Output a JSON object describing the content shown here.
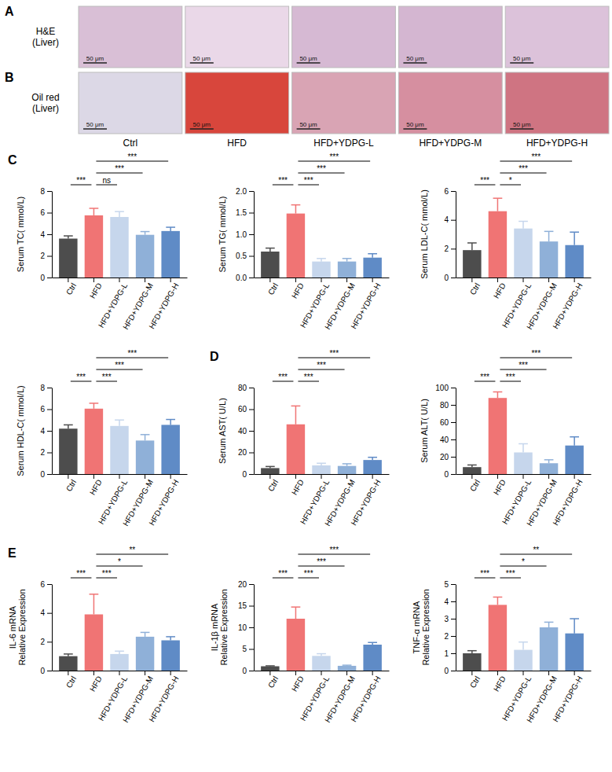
{
  "figure": {
    "panel_letters": [
      "A",
      "B",
      "C",
      "D",
      "E"
    ],
    "image_rows": [
      {
        "label": [
          "H&E",
          "(Liver)"
        ]
      },
      {
        "label": [
          "Oil red",
          "(Liver)"
        ]
      }
    ],
    "groups": [
      "Ctrl",
      "HFD",
      "HFD+YDPG-L",
      "HFD+YDPG-M",
      "HFD+YDPG-H"
    ],
    "scale_bar": "50 μm"
  },
  "chart_data": [
    {
      "type": "bar",
      "ylabel": "Serum TC( mmol/L)",
      "categories": [
        "Ctrl",
        "HFD",
        "HFD+YDPG-L",
        "HFD+YDPG-M",
        "HFD+YDPG-H"
      ],
      "values": [
        3.6,
        5.75,
        5.6,
        3.95,
        4.3
      ],
      "errors": [
        0.25,
        0.65,
        0.5,
        0.3,
        0.35
      ],
      "colors": [
        "#4d4d4d",
        "#f07474",
        "#c6d6ec",
        "#8fb0d8",
        "#5f8bc6"
      ],
      "ylim": [
        0,
        8
      ],
      "yticks": [
        0,
        2,
        4,
        6,
        8
      ],
      "annotations": [
        {
          "from": 0,
          "to": 1,
          "label": "***"
        },
        {
          "from": 1,
          "to": 2,
          "label": "ns"
        },
        {
          "from": 1,
          "to": 3,
          "label": "***"
        },
        {
          "from": 1,
          "to": 4,
          "label": "***"
        }
      ]
    },
    {
      "type": "bar",
      "ylabel": "Serum TG( mmol/L)",
      "categories": [
        "Ctrl",
        "HFD",
        "HFD+YDPG-L",
        "HFD+YDPG-M",
        "HFD+YDPG-H"
      ],
      "values": [
        0.6,
        1.48,
        0.37,
        0.37,
        0.46
      ],
      "errors": [
        0.08,
        0.2,
        0.07,
        0.07,
        0.09
      ],
      "colors": [
        "#4d4d4d",
        "#f07474",
        "#c6d6ec",
        "#8fb0d8",
        "#5f8bc6"
      ],
      "ylim": [
        0,
        2
      ],
      "yticks": [
        {
          "value": 0,
          "label": "0.0"
        },
        {
          "value": 0.5,
          "label": "0.5"
        },
        {
          "value": 1,
          "label": "1.0"
        },
        {
          "value": 1.5,
          "label": "1.5"
        },
        {
          "value": 2,
          "label": "2.0"
        }
      ],
      "annotations": [
        {
          "from": 0,
          "to": 1,
          "label": "***"
        },
        {
          "from": 1,
          "to": 2,
          "label": "***"
        },
        {
          "from": 1,
          "to": 3,
          "label": "***"
        },
        {
          "from": 1,
          "to": 4,
          "label": "***"
        }
      ]
    },
    {
      "type": "bar",
      "ylabel": "Serum LDL-C( mmol/L)",
      "categories": [
        "Ctrl",
        "HFD",
        "HFD+YDPG-L",
        "HFD+YDPG-M",
        "HFD+YDPG-H"
      ],
      "values": [
        1.9,
        4.6,
        3.4,
        2.5,
        2.25
      ],
      "errors": [
        0.5,
        0.9,
        0.5,
        0.7,
        0.9
      ],
      "colors": [
        "#4d4d4d",
        "#f07474",
        "#c6d6ec",
        "#8fb0d8",
        "#5f8bc6"
      ],
      "ylim": [
        0,
        6
      ],
      "yticks": [
        0,
        2,
        4,
        6
      ],
      "annotations": [
        {
          "from": 0,
          "to": 1,
          "label": "***"
        },
        {
          "from": 1,
          "to": 2,
          "label": "*"
        },
        {
          "from": 1,
          "to": 3,
          "label": "***"
        },
        {
          "from": 1,
          "to": 4,
          "label": "***"
        }
      ]
    },
    {
      "type": "bar",
      "ylabel": "Serum HDL-C( mmol/L)",
      "categories": [
        "Ctrl",
        "HFD",
        "HFD+YDPG-L",
        "HFD+YDPG-M",
        "HFD+YDPG-H"
      ],
      "values": [
        4.2,
        6.05,
        4.45,
        3.1,
        4.55
      ],
      "errors": [
        0.35,
        0.5,
        0.55,
        0.55,
        0.5
      ],
      "colors": [
        "#4d4d4d",
        "#f07474",
        "#c6d6ec",
        "#8fb0d8",
        "#5f8bc6"
      ],
      "ylim": [
        0,
        8
      ],
      "yticks": [
        0,
        2,
        4,
        6,
        8
      ],
      "annotations": [
        {
          "from": 0,
          "to": 1,
          "label": "***"
        },
        {
          "from": 1,
          "to": 2,
          "label": "***"
        },
        {
          "from": 1,
          "to": 3,
          "label": "***"
        },
        {
          "from": 1,
          "to": 4,
          "label": "***"
        }
      ]
    },
    {
      "type": "bar",
      "ylabel": "Serum AST( U/L)",
      "categories": [
        "Ctrl",
        "HFD",
        "HFD+YDPG-L",
        "HFD+YDPG-M",
        "HFD+YDPG-H"
      ],
      "values": [
        5.5,
        46,
        8,
        7.5,
        13
      ],
      "errors": [
        1.5,
        17,
        2,
        2,
        2.5
      ],
      "colors": [
        "#4d4d4d",
        "#f07474",
        "#c6d6ec",
        "#8fb0d8",
        "#5f8bc6"
      ],
      "ylim": [
        0,
        80
      ],
      "yticks": [
        0,
        20,
        40,
        60,
        80
      ],
      "annotations": [
        {
          "from": 0,
          "to": 1,
          "label": "***"
        },
        {
          "from": 1,
          "to": 2,
          "label": "***"
        },
        {
          "from": 1,
          "to": 3,
          "label": "***"
        },
        {
          "from": 1,
          "to": 4,
          "label": "***"
        }
      ]
    },
    {
      "type": "bar",
      "ylabel": "Serum ALT( U/L)",
      "categories": [
        "Ctrl",
        "HFD",
        "HFD+YDPG-L",
        "HFD+YDPG-M",
        "HFD+YDPG-H"
      ],
      "values": [
        8,
        88,
        25,
        12.5,
        33
      ],
      "errors": [
        2.5,
        7,
        10,
        4,
        10
      ],
      "colors": [
        "#4d4d4d",
        "#f07474",
        "#c6d6ec",
        "#8fb0d8",
        "#5f8bc6"
      ],
      "ylim": [
        0,
        100
      ],
      "yticks": [
        0,
        20,
        40,
        60,
        80,
        100
      ],
      "annotations": [
        {
          "from": 0,
          "to": 1,
          "label": "***"
        },
        {
          "from": 1,
          "to": 2,
          "label": "***"
        },
        {
          "from": 1,
          "to": 3,
          "label": "***"
        },
        {
          "from": 1,
          "to": 4,
          "label": "***"
        }
      ]
    },
    {
      "type": "bar",
      "ylabel": [
        "IL-6 mRNA",
        "Relative Expression"
      ],
      "categories": [
        "Ctrl",
        "HFD",
        "HFD+YDPG-L",
        "HFD+YDPG-M",
        "HFD+YDPG-H"
      ],
      "values": [
        1.0,
        3.9,
        1.15,
        2.35,
        2.1
      ],
      "errors": [
        0.15,
        1.4,
        0.2,
        0.3,
        0.25
      ],
      "colors": [
        "#4d4d4d",
        "#f07474",
        "#c6d6ec",
        "#8fb0d8",
        "#5f8bc6"
      ],
      "ylim": [
        0,
        6
      ],
      "yticks": [
        0,
        2,
        4,
        6
      ],
      "annotations": [
        {
          "from": 0,
          "to": 1,
          "label": "***"
        },
        {
          "from": 1,
          "to": 2,
          "label": "***"
        },
        {
          "from": 1,
          "to": 3,
          "label": "*"
        },
        {
          "from": 1,
          "to": 4,
          "label": "**"
        }
      ]
    },
    {
      "type": "bar",
      "ylabel": [
        "IL-1β mRNA",
        "Relative Expression"
      ],
      "categories": [
        "Ctrl",
        "HFD",
        "HFD+YDPG-L",
        "HFD+YDPG-M",
        "HFD+YDPG-H"
      ],
      "values": [
        1.0,
        12,
        3.4,
        1.1,
        6
      ],
      "errors": [
        0.1,
        2.7,
        0.5,
        0.15,
        0.5
      ],
      "colors": [
        "#4d4d4d",
        "#f07474",
        "#c6d6ec",
        "#8fb0d8",
        "#5f8bc6"
      ],
      "ylim": [
        0,
        20
      ],
      "yticks": [
        0,
        5,
        10,
        15,
        20
      ],
      "annotations": [
        {
          "from": 0,
          "to": 1,
          "label": "***"
        },
        {
          "from": 1,
          "to": 2,
          "label": "***"
        },
        {
          "from": 1,
          "to": 3,
          "label": "***"
        },
        {
          "from": 1,
          "to": 4,
          "label": "***"
        }
      ]
    },
    {
      "type": "bar",
      "ylabel": [
        "TNF-α mRNA",
        "Relative Expression"
      ],
      "categories": [
        "Ctrl",
        "HFD",
        "HFD+YDPG-L",
        "HFD+YDPG-M",
        "HFD+YDPG-H"
      ],
      "values": [
        1.0,
        3.8,
        1.2,
        2.5,
        2.15
      ],
      "errors": [
        0.15,
        0.45,
        0.45,
        0.3,
        0.85
      ],
      "colors": [
        "#4d4d4d",
        "#f07474",
        "#c6d6ec",
        "#8fb0d8",
        "#5f8bc6"
      ],
      "ylim": [
        0,
        5
      ],
      "yticks": [
        0,
        1,
        2,
        3,
        4,
        5
      ],
      "annotations": [
        {
          "from": 0,
          "to": 1,
          "label": "***"
        },
        {
          "from": 1,
          "to": 2,
          "label": "***"
        },
        {
          "from": 1,
          "to": 3,
          "label": "*"
        },
        {
          "from": 1,
          "to": 4,
          "label": "**"
        }
      ]
    }
  ]
}
